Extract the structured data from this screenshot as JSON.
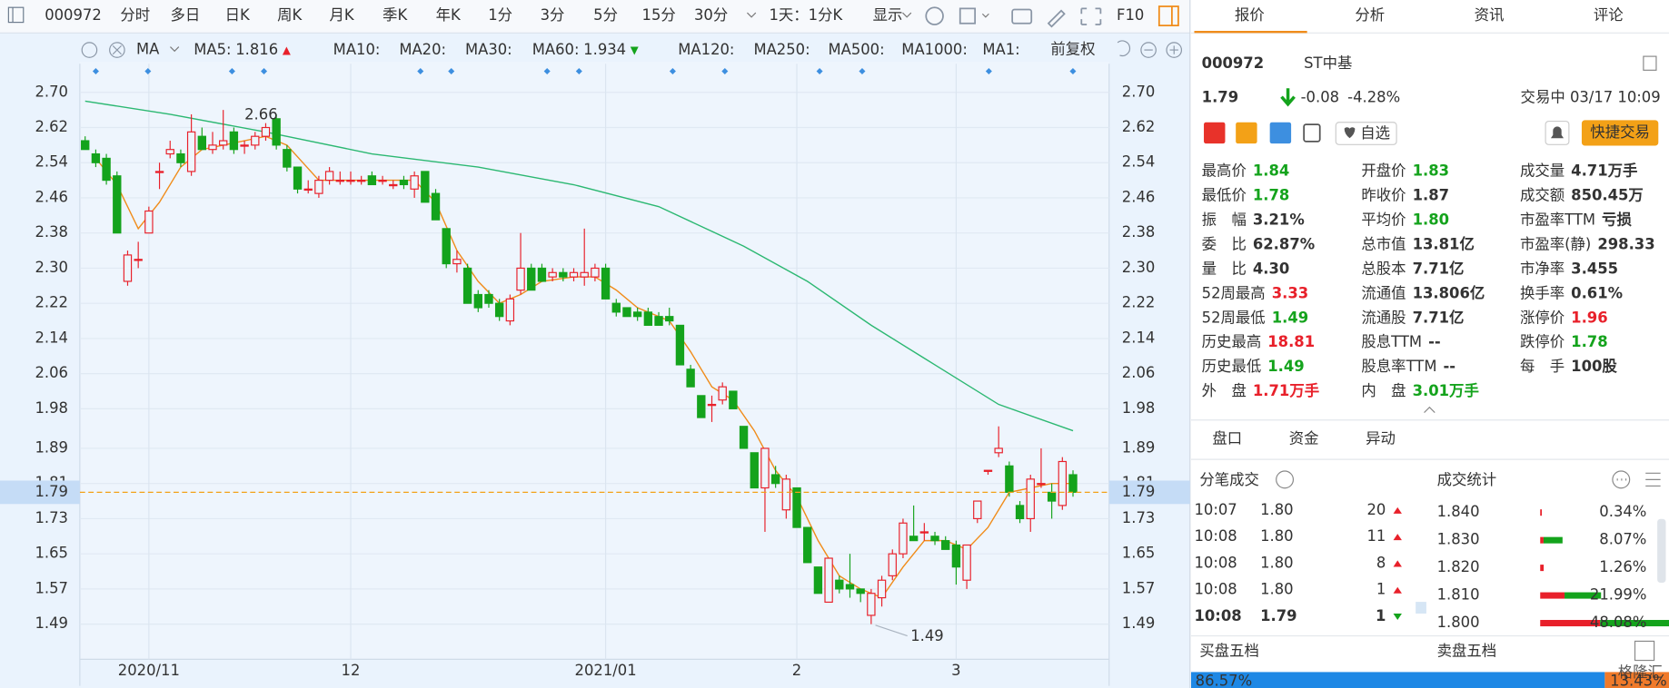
{
  "toolbar": {
    "code": "000972",
    "tabs": [
      "分时",
      "多日",
      "日K",
      "周K",
      "月K",
      "季K",
      "年K",
      "1分",
      "3分",
      "5分",
      "15分",
      "30分",
      "1天：1分K",
      "显示"
    ],
    "active": 2,
    "f10": "F10"
  },
  "chart": {
    "type": "candlestick",
    "ma": [
      {
        "label": "MA5:",
        "value": "1.816",
        "color": "#f08c1a",
        "trend": "up",
        "line": {
          "x": [
            1,
            3,
            5,
            7,
            9,
            11,
            13,
            17,
            19,
            22,
            25,
            31,
            33,
            35,
            37,
            39,
            41,
            43,
            46,
            48,
            50,
            52,
            55,
            57,
            59,
            61,
            63,
            65,
            67,
            69,
            71,
            73,
            75,
            77,
            79,
            81,
            83,
            85,
            87,
            89,
            91,
            93
          ],
          "values": [
            2.55,
            2.49,
            2.39,
            2.45,
            2.53,
            2.57,
            2.58,
            2.6,
            2.58,
            2.5,
            2.5,
            2.5,
            2.45,
            2.34,
            2.27,
            2.22,
            2.24,
            2.27,
            2.28,
            2.28,
            2.25,
            2.21,
            2.18,
            2.11,
            2.03,
            2.0,
            1.93,
            1.84,
            1.78,
            1.68,
            1.6,
            1.57,
            1.55,
            1.62,
            1.68,
            1.68,
            1.66,
            1.71,
            1.79,
            1.8,
            1.81,
            1.81
          ]
        }
      },
      {
        "label": "MA10:",
        "color": "#9fd0f0"
      },
      {
        "label": "MA20:",
        "color": "#f4b5cf"
      },
      {
        "label": "MA30:",
        "color": "#9fc8ec"
      },
      {
        "label": "MA60:",
        "value": "1.934",
        "color": "#2cb872",
        "trend": "down",
        "line": {
          "x": [
            0,
            8,
            17,
            27,
            37,
            46,
            54,
            62,
            68,
            74,
            80,
            86,
            93
          ],
          "values": [
            2.68,
            2.65,
            2.61,
            2.56,
            2.53,
            2.49,
            2.44,
            2.35,
            2.27,
            2.17,
            2.08,
            1.99,
            1.93
          ]
        }
      },
      {
        "label": "MA120:",
        "color": "#f4b5cf"
      },
      {
        "label": "MA250:",
        "color": "#a2e2f2"
      },
      {
        "label": "MA500:",
        "color": "#f5d89a"
      },
      {
        "label": "MA1000:",
        "color": "#c5b5ea"
      },
      {
        "label": "MA1:",
        "color": "#b5c7e0"
      }
    ],
    "adjust": "前复权",
    "ylim": [
      1.41,
      2.765
    ],
    "yticks": [
      {
        "value": 2.7,
        "label": "2.70"
      },
      2.62,
      2.54,
      2.46,
      2.38,
      {
        "value": 2.3,
        "label": "2.30"
      },
      2.22,
      2.14,
      2.06,
      1.98,
      1.89,
      1.81,
      1.73,
      1.65,
      1.57,
      1.49
    ],
    "xlim": [
      -0.5,
      96.4
    ],
    "xticks": [
      {
        "value": 6,
        "label": "2020/11"
      },
      {
        "value": 25,
        "label": "12"
      },
      {
        "value": 49,
        "label": "2021/01"
      },
      {
        "value": 67,
        "label": "2"
      },
      {
        "value": 82,
        "label": "3"
      }
    ],
    "grid": true,
    "last": {
      "value": 1.79,
      "label": "1.79"
    },
    "annotations": [
      {
        "x": 13,
        "value": 2.66,
        "label": "2.66"
      },
      {
        "x": 74,
        "value": 1.49,
        "label": "1.49"
      }
    ],
    "candles": [
      [
        2.59,
        2.6,
        2.57,
        2.57
      ],
      [
        2.56,
        2.57,
        2.53,
        2.54
      ],
      [
        2.55,
        2.56,
        2.49,
        2.5
      ],
      [
        2.51,
        2.52,
        2.38,
        2.38
      ],
      [
        2.27,
        2.34,
        2.26,
        2.33
      ],
      [
        2.32,
        2.36,
        2.3,
        2.32
      ],
      [
        2.38,
        2.44,
        2.38,
        2.43
      ],
      [
        2.52,
        2.54,
        2.48,
        2.52
      ],
      [
        2.56,
        2.59,
        2.55,
        2.57
      ],
      [
        2.56,
        2.57,
        2.53,
        2.54
      ],
      [
        2.52,
        2.65,
        2.51,
        2.61
      ],
      [
        2.6,
        2.62,
        2.57,
        2.57
      ],
      [
        2.57,
        2.61,
        2.56,
        2.58
      ],
      [
        2.58,
        2.66,
        2.57,
        2.59
      ],
      [
        2.61,
        2.62,
        2.56,
        2.57
      ],
      [
        2.58,
        2.59,
        2.56,
        2.58
      ],
      [
        2.58,
        2.61,
        2.57,
        2.6
      ],
      [
        2.6,
        2.63,
        2.59,
        2.62
      ],
      [
        2.64,
        2.65,
        2.57,
        2.58
      ],
      [
        2.57,
        2.58,
        2.52,
        2.53
      ],
      [
        2.53,
        2.53,
        2.47,
        2.48
      ],
      [
        2.48,
        2.5,
        2.47,
        2.48
      ],
      [
        2.47,
        2.51,
        2.46,
        2.5
      ],
      [
        2.5,
        2.53,
        2.49,
        2.52
      ],
      [
        2.5,
        2.52,
        2.49,
        2.5
      ],
      [
        2.5,
        2.52,
        2.49,
        2.5
      ],
      [
        2.5,
        2.51,
        2.49,
        2.5
      ],
      [
        2.51,
        2.52,
        2.49,
        2.49
      ],
      [
        2.5,
        2.51,
        2.49,
        2.5
      ],
      [
        2.49,
        2.5,
        2.48,
        2.49
      ],
      [
        2.5,
        2.51,
        2.48,
        2.49
      ],
      [
        2.48,
        2.52,
        2.46,
        2.51
      ],
      [
        2.52,
        2.52,
        2.45,
        2.45
      ],
      [
        2.47,
        2.48,
        2.41,
        2.41
      ],
      [
        2.39,
        2.39,
        2.3,
        2.31
      ],
      [
        2.31,
        2.34,
        2.29,
        2.32
      ],
      [
        2.3,
        2.31,
        2.22,
        2.22
      ],
      [
        2.24,
        2.25,
        2.2,
        2.21
      ],
      [
        2.24,
        2.25,
        2.21,
        2.22
      ],
      [
        2.22,
        2.23,
        2.18,
        2.19
      ],
      [
        2.18,
        2.24,
        2.17,
        2.23
      ],
      [
        2.25,
        2.38,
        2.24,
        2.3
      ],
      [
        2.3,
        2.31,
        2.25,
        2.25
      ],
      [
        2.3,
        2.31,
        2.27,
        2.27
      ],
      [
        2.28,
        2.3,
        2.27,
        2.29
      ],
      [
        2.29,
        2.3,
        2.27,
        2.28
      ],
      [
        2.28,
        2.3,
        2.27,
        2.29
      ],
      [
        2.28,
        2.39,
        2.26,
        2.29
      ],
      [
        2.28,
        2.31,
        2.27,
        2.3
      ],
      [
        2.3,
        2.31,
        2.23,
        2.23
      ],
      [
        2.22,
        2.23,
        2.19,
        2.2
      ],
      [
        2.21,
        2.21,
        2.19,
        2.19
      ],
      [
        2.2,
        2.21,
        2.18,
        2.19
      ],
      [
        2.2,
        2.21,
        2.17,
        2.17
      ],
      [
        2.19,
        2.2,
        2.17,
        2.17
      ],
      [
        2.19,
        2.21,
        2.17,
        2.18
      ],
      [
        2.17,
        2.17,
        2.08,
        2.08
      ],
      [
        2.07,
        2.08,
        2.03,
        2.03
      ],
      [
        2.01,
        2.01,
        1.96,
        1.96
      ],
      [
        1.99,
        2.01,
        1.95,
        1.99
      ],
      [
        2.0,
        2.04,
        1.99,
        2.03
      ],
      [
        2.02,
        2.02,
        1.98,
        1.98
      ],
      [
        1.94,
        1.94,
        1.89,
        1.89
      ],
      [
        1.88,
        1.88,
        1.8,
        1.8
      ],
      [
        1.8,
        1.89,
        1.7,
        1.89
      ],
      [
        1.83,
        1.85,
        1.8,
        1.81
      ],
      [
        1.75,
        1.83,
        1.73,
        1.82
      ],
      [
        1.8,
        1.8,
        1.71,
        1.71
      ],
      [
        1.71,
        1.71,
        1.63,
        1.63
      ],
      [
        1.62,
        1.62,
        1.56,
        1.56
      ],
      [
        1.54,
        1.64,
        1.54,
        1.64
      ],
      [
        1.59,
        1.6,
        1.56,
        1.57
      ],
      [
        1.58,
        1.65,
        1.55,
        1.57
      ],
      [
        1.57,
        1.57,
        1.54,
        1.56
      ],
      [
        1.51,
        1.57,
        1.49,
        1.56
      ],
      [
        1.55,
        1.6,
        1.53,
        1.59
      ],
      [
        1.6,
        1.66,
        1.59,
        1.65
      ],
      [
        1.65,
        1.73,
        1.64,
        1.72
      ],
      [
        1.69,
        1.76,
        1.68,
        1.68
      ],
      [
        1.7,
        1.72,
        1.68,
        1.7
      ],
      [
        1.69,
        1.7,
        1.67,
        1.68
      ],
      [
        1.68,
        1.69,
        1.66,
        1.66
      ],
      [
        1.67,
        1.68,
        1.58,
        1.62
      ],
      [
        1.59,
        1.67,
        1.57,
        1.67
      ],
      [
        1.73,
        1.77,
        1.72,
        1.77
      ],
      [
        1.84,
        1.84,
        1.83,
        1.84
      ],
      [
        1.88,
        1.94,
        1.87,
        1.89
      ],
      [
        1.85,
        1.86,
        1.78,
        1.79
      ],
      [
        1.76,
        1.77,
        1.72,
        1.73
      ],
      [
        1.73,
        1.83,
        1.7,
        1.82
      ],
      [
        1.81,
        1.89,
        1.8,
        1.81
      ],
      [
        1.79,
        1.81,
        1.73,
        1.77
      ],
      [
        1.76,
        1.87,
        1.75,
        1.86
      ],
      [
        1.83,
        1.84,
        1.78,
        1.79
      ]
    ]
  },
  "side": {
    "tabs": [
      "报价",
      "分析",
      "资讯",
      "评论"
    ],
    "code": "000972",
    "name": "ST中基",
    "price": "1.79",
    "change": "-0.08",
    "change_pct": "-4.28%",
    "status": "交易中 03/17 10:09",
    "watch": "自选",
    "trade": "快捷交易",
    "stats": [
      [
        {
          "label": "最高价",
          "value": "1.84",
          "tone": "down"
        },
        {
          "label": "最低价",
          "value": "1.78",
          "tone": "down"
        },
        {
          "label": "振　幅",
          "value": "3.21%",
          "tone": "flat"
        },
        {
          "label": "委　比",
          "value": "62.87%",
          "tone": "flat"
        },
        {
          "label": "量　比",
          "value": "4.30",
          "tone": "flat"
        },
        {
          "label": "52周最高",
          "value": "3.33",
          "tone": "up"
        },
        {
          "label": "52周最低",
          "value": "1.49",
          "tone": "down"
        },
        {
          "label": "历史最高",
          "value": "18.81",
          "tone": "up"
        },
        {
          "label": "历史最低",
          "value": "1.49",
          "tone": "down"
        },
        {
          "label": "外　盘",
          "value": "1.71万手",
          "tone": "up"
        }
      ],
      [
        {
          "label": "开盘价",
          "value": "1.83",
          "tone": "down"
        },
        {
          "label": "昨收价",
          "value": "1.87",
          "tone": "flat"
        },
        {
          "label": "平均价",
          "value": "1.80",
          "tone": "down"
        },
        {
          "label": "总市值",
          "value": "13.81亿",
          "tone": "flat"
        },
        {
          "label": "总股本",
          "value": "7.71亿",
          "tone": "flat"
        },
        {
          "label": "流通值",
          "value": "13.806亿",
          "tone": "flat"
        },
        {
          "label": "流通股",
          "value": "7.71亿",
          "tone": "flat"
        },
        {
          "label": "股息TTM",
          "value": "--",
          "tone": "flat"
        },
        {
          "label": "股息率TTM",
          "value": "--",
          "tone": "flat"
        },
        {
          "label": "内　盘",
          "value": "3.01万手",
          "tone": "down"
        }
      ],
      [
        {
          "label": "成交量",
          "value": "4.71万手",
          "tone": "flat"
        },
        {
          "label": "成交额",
          "value": "850.45万",
          "tone": "flat"
        },
        {
          "label": "市盈率TTM",
          "value": "亏损",
          "tone": "flat"
        },
        {
          "label": "市盈率(静)",
          "value": "298.33",
          "tone": "flat"
        },
        {
          "label": "市净率",
          "value": "3.455",
          "tone": "flat"
        },
        {
          "label": "换手率",
          "value": "0.61%",
          "tone": "flat"
        },
        {
          "label": "涨停价",
          "value": "1.96",
          "tone": "up"
        },
        {
          "label": "跌停价",
          "value": "1.78",
          "tone": "down"
        },
        {
          "label": "每　手",
          "value": "100股",
          "tone": "flat"
        }
      ]
    ],
    "subtabs": [
      "盘口",
      "资金",
      "异动"
    ],
    "ticks_title": "分笔成交",
    "ticks": [
      {
        "time": "10:07",
        "price": "1.80",
        "vol": "20",
        "dir": "up"
      },
      {
        "time": "10:08",
        "price": "1.80",
        "vol": "11",
        "dir": "up"
      },
      {
        "time": "10:08",
        "price": "1.80",
        "vol": "8",
        "dir": "up"
      },
      {
        "time": "10:08",
        "price": "1.80",
        "vol": "1",
        "dir": "up"
      },
      {
        "time": "10:08",
        "price": "1.79",
        "vol": "1",
        "dir": "down",
        "bold": true
      }
    ],
    "dist_title": "成交统计",
    "dist": [
      {
        "price": "1.840",
        "pct": "0.34%",
        "buy": 1
      },
      {
        "price": "1.830",
        "pct": "8.07%",
        "buy": 0.15
      },
      {
        "price": "1.820",
        "pct": "1.26%",
        "buy": 1
      },
      {
        "price": "1.810",
        "pct": "21.99%",
        "buy": 0.4
      },
      {
        "price": "1.800",
        "pct": "48.08%",
        "buy": 0.45
      }
    ],
    "bid_title": "买盘五档",
    "ask_title": "卖盘五档",
    "bid_pct": "86.57%",
    "ask_pct": "13.43%",
    "watermark": "格隆汇"
  }
}
